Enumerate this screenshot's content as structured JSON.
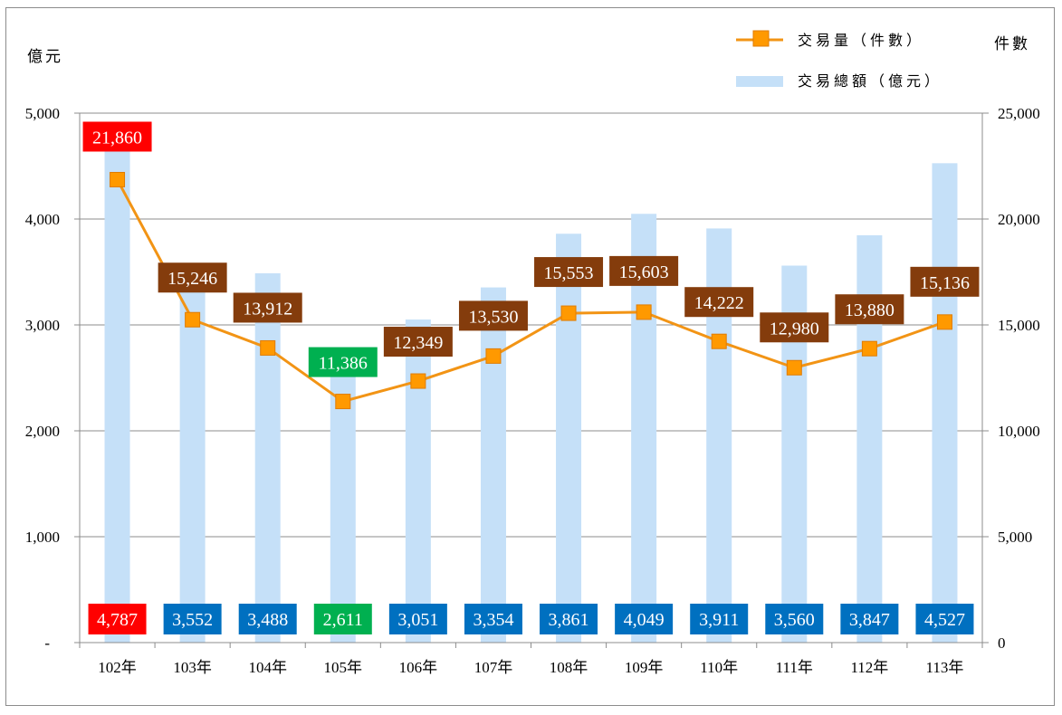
{
  "chart_data": {
    "type": "bar+line",
    "categories": [
      "102年",
      "103年",
      "104年",
      "105年",
      "106年",
      "107年",
      "108年",
      "109年",
      "110年",
      "111年",
      "112年",
      "113年"
    ],
    "series": [
      {
        "name": "交易總額（億元）",
        "type": "bar",
        "axis": "left",
        "values": [
          4787,
          3552,
          3488,
          2611,
          3051,
          3354,
          3861,
          4049,
          3911,
          3560,
          3847,
          4527
        ],
        "labels": [
          "4,787",
          "3,552",
          "3,488",
          "2,611",
          "3,051",
          "3,354",
          "3,861",
          "4,049",
          "3,911",
          "3,560",
          "3,847",
          "4,527"
        ],
        "label_colors": [
          "#ff0000",
          "#0070c0",
          "#0070c0",
          "#00b050",
          "#0070c0",
          "#0070c0",
          "#0070c0",
          "#0070c0",
          "#0070c0",
          "#0070c0",
          "#0070c0",
          "#0070c0"
        ],
        "color": "#c5e0f8"
      },
      {
        "name": "交易量（件數）",
        "type": "line",
        "axis": "right",
        "values": [
          21860,
          15246,
          13912,
          11386,
          12349,
          13530,
          15553,
          15603,
          14222,
          12980,
          13880,
          15136
        ],
        "labels": [
          "21,860",
          "15,246",
          "13,912",
          "11,386",
          "12,349",
          "13,530",
          "15,553",
          "15,603",
          "14,222",
          "12,980",
          "13,880",
          "15,136"
        ],
        "label_colors": [
          "#ff0000",
          "#843c0c",
          "#843c0c",
          "#00b050",
          "#843c0c",
          "#843c0c",
          "#843c0c",
          "#843c0c",
          "#843c0c",
          "#843c0c",
          "#843c0c",
          "#843c0c"
        ],
        "color": "#f29415",
        "marker_color": "#ff9900"
      }
    ],
    "y_left": {
      "label": "億元",
      "range": [
        0,
        5000
      ],
      "ticks": [
        0,
        1000,
        2000,
        3000,
        4000,
        5000
      ],
      "tick_labels": [
        "-",
        "1,000",
        "2,000",
        "3,000",
        "4,000",
        "5,000"
      ]
    },
    "y_right": {
      "label": "件數",
      "range": [
        0,
        25000
      ],
      "ticks": [
        0,
        5000,
        10000,
        15000,
        20000,
        25000
      ],
      "tick_labels": [
        "0",
        "5,000",
        "10,000",
        "15,000",
        "20,000",
        "25,000"
      ]
    },
    "grid": true,
    "legend": {
      "position": "top-right",
      "entries": [
        "交易量（件數）",
        "交易總額（億元）"
      ]
    },
    "colors": {
      "grid": "#8c8c8c",
      "axis": "#8c8c8c"
    }
  }
}
